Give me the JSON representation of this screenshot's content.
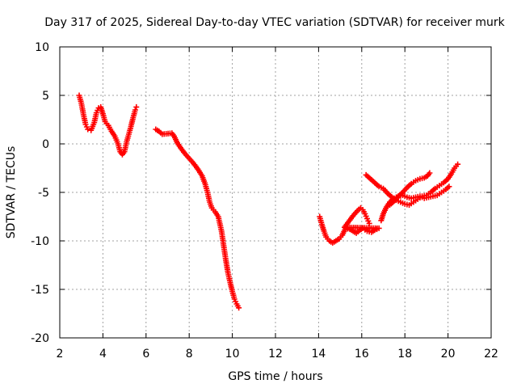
{
  "chart_data": {
    "type": "scatter",
    "title": "Day 317 of 2025, Sidereal Day-to-day VTEC variation (SDTVAR) for receiver murk",
    "xlabel": "GPS time / hours",
    "ylabel": "SDTVAR / TECUs",
    "xlim": [
      2,
      22
    ],
    "ylim": [
      -20,
      10
    ],
    "xticks": [
      "2",
      "4",
      "6",
      "8",
      "10",
      "12",
      "14",
      "16",
      "18",
      "20",
      "22"
    ],
    "yticks": [
      "10",
      "5",
      "0",
      "-5",
      "-10",
      "-15",
      "-20"
    ],
    "grid": true,
    "marker": "plus",
    "color": "#ff0000",
    "series": [
      {
        "points": [
          [
            2.9,
            5.0
          ],
          [
            3.0,
            4.2
          ],
          [
            3.1,
            3.0
          ],
          [
            3.2,
            2.0
          ],
          [
            3.3,
            1.5
          ],
          [
            3.45,
            1.4
          ],
          [
            3.6,
            2.2
          ],
          [
            3.7,
            3.2
          ],
          [
            3.8,
            3.7
          ],
          [
            3.9,
            3.8
          ],
          [
            4.0,
            3.1
          ],
          [
            4.1,
            2.3
          ],
          [
            4.25,
            1.9
          ],
          [
            4.4,
            1.3
          ],
          [
            4.55,
            0.8
          ],
          [
            4.7,
            0.0
          ],
          [
            4.8,
            -0.8
          ],
          [
            4.9,
            -1.1
          ],
          [
            5.0,
            -0.8
          ],
          [
            5.1,
            0.2
          ],
          [
            5.2,
            1.0
          ],
          [
            5.3,
            1.8
          ],
          [
            5.4,
            2.7
          ],
          [
            5.5,
            3.5
          ],
          [
            5.55,
            3.8
          ]
        ]
      },
      {
        "points": [
          [
            6.45,
            1.5
          ],
          [
            6.6,
            1.3
          ],
          [
            6.75,
            1.0
          ],
          [
            7.2,
            1.1
          ],
          [
            7.3,
            0.8
          ],
          [
            7.45,
            0.1
          ],
          [
            7.6,
            -0.4
          ],
          [
            7.8,
            -1.0
          ],
          [
            8.0,
            -1.5
          ],
          [
            8.2,
            -2.0
          ],
          [
            8.4,
            -2.6
          ],
          [
            8.6,
            -3.3
          ],
          [
            8.75,
            -4.2
          ],
          [
            8.85,
            -5.0
          ],
          [
            8.95,
            -6.0
          ],
          [
            9.05,
            -6.6
          ],
          [
            9.2,
            -7.0
          ],
          [
            9.35,
            -7.5
          ],
          [
            9.5,
            -9.0
          ],
          [
            9.6,
            -10.5
          ],
          [
            9.7,
            -12.0
          ],
          [
            9.8,
            -13.3
          ],
          [
            9.9,
            -14.3
          ],
          [
            10.0,
            -15.2
          ],
          [
            10.1,
            -16.0
          ],
          [
            10.2,
            -16.5
          ],
          [
            10.3,
            -16.9
          ]
        ]
      },
      {
        "points": [
          [
            14.05,
            -7.5
          ],
          [
            14.15,
            -8.3
          ],
          [
            14.25,
            -9.0
          ],
          [
            14.35,
            -9.6
          ],
          [
            14.5,
            -10.0
          ],
          [
            14.65,
            -10.2
          ],
          [
            14.8,
            -10.0
          ],
          [
            14.95,
            -9.8
          ],
          [
            15.1,
            -9.4
          ],
          [
            15.25,
            -8.7
          ],
          [
            15.45,
            -8.8
          ],
          [
            15.6,
            -9.0
          ],
          [
            15.75,
            -9.2
          ],
          [
            15.9,
            -8.9
          ],
          [
            16.05,
            -8.7
          ],
          [
            16.25,
            -9.0
          ],
          [
            16.45,
            -9.1
          ],
          [
            16.6,
            -8.9
          ],
          [
            16.8,
            -8.7
          ],
          [
            15.2,
            -8.6
          ],
          [
            15.4,
            -8.0
          ],
          [
            15.6,
            -7.4
          ],
          [
            15.8,
            -6.9
          ],
          [
            15.95,
            -6.6
          ],
          [
            16.05,
            -6.8
          ],
          [
            16.15,
            -7.2
          ],
          [
            16.25,
            -7.7
          ],
          [
            16.35,
            -8.2
          ]
        ]
      },
      {
        "points": [
          [
            16.2,
            -3.2
          ],
          [
            16.4,
            -3.6
          ],
          [
            16.6,
            -4.0
          ],
          [
            16.8,
            -4.4
          ],
          [
            17.0,
            -4.6
          ],
          [
            17.2,
            -5.1
          ],
          [
            17.4,
            -5.5
          ],
          [
            17.6,
            -5.8
          ],
          [
            17.8,
            -6.0
          ],
          [
            18.0,
            -6.2
          ],
          [
            18.2,
            -6.3
          ],
          [
            18.4,
            -6.0
          ],
          [
            18.6,
            -5.7
          ],
          [
            18.8,
            -5.4
          ],
          [
            19.0,
            -5.3
          ],
          [
            19.2,
            -5.0
          ],
          [
            19.4,
            -4.6
          ],
          [
            19.6,
            -4.3
          ],
          [
            19.8,
            -4.0
          ],
          [
            20.0,
            -3.6
          ],
          [
            20.15,
            -3.1
          ],
          [
            20.3,
            -2.5
          ],
          [
            20.45,
            -2.1
          ]
        ]
      },
      {
        "points": [
          [
            16.9,
            -7.9
          ],
          [
            17.0,
            -7.2
          ],
          [
            17.15,
            -6.5
          ],
          [
            17.3,
            -6.0
          ],
          [
            17.5,
            -5.6
          ],
          [
            17.7,
            -5.4
          ],
          [
            17.9,
            -5.3
          ],
          [
            18.1,
            -5.5
          ],
          [
            18.3,
            -5.6
          ],
          [
            18.5,
            -5.5
          ],
          [
            18.7,
            -5.4
          ],
          [
            18.9,
            -5.6
          ],
          [
            19.1,
            -5.5
          ],
          [
            19.3,
            -5.4
          ],
          [
            19.5,
            -5.3
          ],
          [
            19.7,
            -5.0
          ],
          [
            19.9,
            -4.7
          ],
          [
            20.05,
            -4.4
          ]
        ]
      },
      {
        "points": [
          [
            17.3,
            -6.3
          ],
          [
            17.5,
            -5.9
          ],
          [
            17.7,
            -5.4
          ],
          [
            17.9,
            -5.0
          ],
          [
            18.1,
            -4.5
          ],
          [
            18.3,
            -4.1
          ],
          [
            18.5,
            -3.8
          ],
          [
            18.7,
            -3.6
          ],
          [
            18.9,
            -3.5
          ],
          [
            19.05,
            -3.3
          ],
          [
            19.15,
            -3.0
          ]
        ]
      }
    ]
  }
}
